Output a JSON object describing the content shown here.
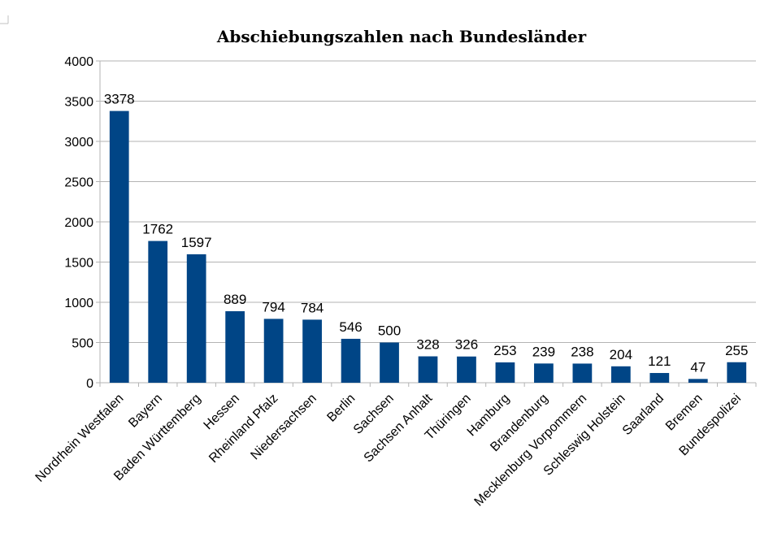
{
  "chart_data": {
    "type": "bar",
    "title": "Abschiebungszahlen nach Bundesländer",
    "xlabel": "",
    "ylabel": "",
    "ylim": [
      0,
      4000
    ],
    "yticks": [
      0,
      500,
      1000,
      1500,
      2000,
      2500,
      3000,
      3500,
      4000
    ],
    "grid": true,
    "legend": "none",
    "bar_color": "#004586",
    "categories": [
      "Nordrhein Westfalen",
      "Bayern",
      "Baden Württemberg",
      "Hessen",
      "Rheinland Pfalz",
      "Niedersachsen",
      "Berlin",
      "Sachsen",
      "Sachsen Anhalt",
      "Thüringen",
      "Hamburg",
      "Brandenburg",
      "Mecklenburg Vorpommern",
      "Schleswig Holstein",
      "Saarland",
      "Bremen",
      "Bundespolizei"
    ],
    "values": [
      3378,
      1762,
      1597,
      889,
      794,
      784,
      546,
      500,
      328,
      326,
      253,
      239,
      238,
      204,
      121,
      47,
      255
    ]
  }
}
